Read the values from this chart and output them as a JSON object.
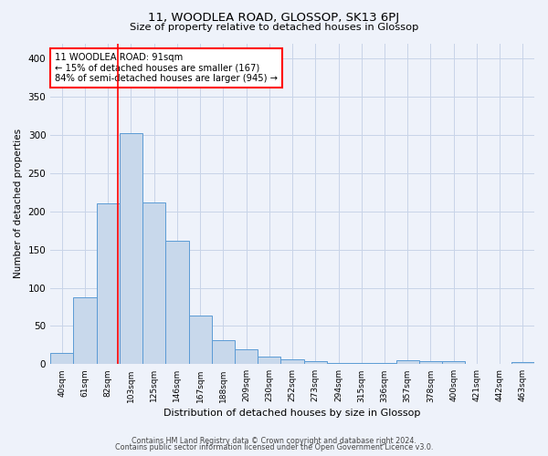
{
  "title": "11, WOODLEA ROAD, GLOSSOP, SK13 6PJ",
  "subtitle": "Size of property relative to detached houses in Glossop",
  "xlabel": "Distribution of detached houses by size in Glossop",
  "ylabel": "Number of detached properties",
  "footer_line1": "Contains HM Land Registry data © Crown copyright and database right 2024.",
  "footer_line2": "Contains public sector information licensed under the Open Government Licence v3.0.",
  "bin_labels": [
    "40sqm",
    "61sqm",
    "82sqm",
    "103sqm",
    "125sqm",
    "146sqm",
    "167sqm",
    "188sqm",
    "209sqm",
    "230sqm",
    "252sqm",
    "273sqm",
    "294sqm",
    "315sqm",
    "336sqm",
    "357sqm",
    "378sqm",
    "400sqm",
    "421sqm",
    "442sqm",
    "463sqm"
  ],
  "bar_heights": [
    15,
    87,
    211,
    303,
    212,
    161,
    64,
    32,
    19,
    10,
    6,
    4,
    2,
    2,
    2,
    5,
    4,
    4,
    0,
    0,
    3
  ],
  "bar_color": "#c8d8eb",
  "bar_edge_color": "#5b9bd5",
  "red_line_x": 2.43,
  "annotation_text": "11 WOODLEA ROAD: 91sqm\n← 15% of detached houses are smaller (167)\n84% of semi-detached houses are larger (945) →",
  "annotation_box_color": "white",
  "annotation_box_edge": "red",
  "ylim": [
    0,
    420
  ],
  "yticks": [
    0,
    50,
    100,
    150,
    200,
    250,
    300,
    350,
    400
  ],
  "grid_color": "#c8d4e8",
  "background_color": "#eef2fa"
}
